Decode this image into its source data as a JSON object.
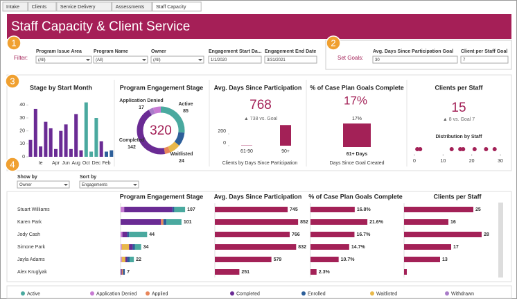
{
  "tabs": [
    "Intake",
    "Clients",
    "Service Delivery",
    "Assessments",
    "Staff Capacity"
  ],
  "header": {
    "title": "Staff Capacity & Client Service"
  },
  "callouts": [
    1,
    2,
    3,
    4
  ],
  "filters": {
    "label": "Filter:",
    "fields": [
      {
        "label": "Program Issue Area",
        "value": "(All)"
      },
      {
        "label": "Program Name",
        "value": "(All)"
      },
      {
        "label": "Owner",
        "value": "(All)"
      },
      {
        "label": "Engagement Start Da...",
        "value": "1/1/2020"
      },
      {
        "label": "Engagement End Date",
        "value": "3/31/2021"
      }
    ]
  },
  "goals": {
    "label": "Set Goals:",
    "fields": [
      {
        "label": "Avg. Days Since Participation Goal",
        "value": "30"
      },
      {
        "label": "Client per Staff Goal",
        "value": "7"
      }
    ]
  },
  "stage_by_month": {
    "title": "Stage by Start Month",
    "categories": [
      null,
      null,
      "Ie",
      null,
      null,
      "Apr",
      null,
      "Jun",
      null,
      "Aug",
      null,
      "Oct",
      null,
      "Dec",
      null,
      "Feb",
      null
    ],
    "values": [
      13,
      37,
      8,
      27,
      22,
      6,
      20,
      25,
      6,
      33,
      5,
      42,
      4,
      30,
      12,
      4,
      5
    ],
    "colors": [
      "#6a2b94",
      "#6a2b94",
      "#6a2b94",
      "#6a2b94",
      "#6a2b94",
      "#6a2b94",
      "#6a2b94",
      "#6a2b94",
      "#6a2b94",
      "#6a2b94",
      "#6a2b94",
      "#4aa99f",
      "#4aa99f",
      "#4aa99f",
      "#6a2b94",
      "#2d5f9a",
      "#2d5f9a"
    ],
    "ylim": [
      0,
      45
    ],
    "yticks": [
      0,
      10,
      20,
      30,
      40
    ]
  },
  "engagement_stage": {
    "title": "Program Engagement Stage",
    "total": 320,
    "segments": [
      {
        "name": "Active",
        "value": 85,
        "color": "#4aa99f"
      },
      {
        "value": 30,
        "color": "#2d5f9a"
      },
      {
        "name": "Waitlisted",
        "value": 24,
        "color": "#e8b84a"
      },
      {
        "value": 12,
        "color": "#e8865a"
      },
      {
        "name": "Completed",
        "value": 142,
        "color": "#6a2b94"
      },
      {
        "value": 10,
        "color": "#a97cc9"
      },
      {
        "name": "Application Denied",
        "value": 17,
        "color": "#c77bd3"
      }
    ]
  },
  "avg_days": {
    "title": "Avg. Days Since Participation",
    "value": 768,
    "delta": "▲ 738 vs. Goal",
    "categories": [
      "61-90",
      "90+"
    ],
    "values": [
      5,
      350
    ],
    "ylim": [
      0,
      400
    ],
    "yticks": [
      0,
      200
    ],
    "caption": "Clients by Days Since Participation"
  },
  "case_plan": {
    "title": "% of Case Plan Goals Complete",
    "value": "17%",
    "categories": [
      "61+ Days"
    ],
    "values": [
      17
    ],
    "value_labels": [
      "17%"
    ],
    "ylim": [
      0,
      20
    ],
    "caption": "Days Since Goal Created"
  },
  "clients_per_staff": {
    "title": "Clients per Staff",
    "value": 15,
    "delta": "▲ 8 vs. Goal 7",
    "subtitle": "Distribution by Staff",
    "values": [
      1,
      2,
      13,
      16,
      17,
      21,
      25,
      28
    ],
    "xlim": [
      0,
      30
    ],
    "xticks": [
      0,
      10,
      20,
      30
    ]
  },
  "controls": [
    {
      "label": "Show by",
      "value": "Owner"
    },
    {
      "label": "Sort by",
      "value": "Engagements"
    }
  ],
  "table": {
    "headers": [
      "Program Engagement Stage",
      "Avg. Days Since Participation",
      "% of Case Plan Goals Complete",
      "Clients per Staff"
    ],
    "rows": [
      {
        "name": "Stuart Williams",
        "stages": [
          18,
          6,
          0,
          80,
          3,
          0,
          0
        ],
        "engagements": 107,
        "days": 745,
        "pct": {
          "value": 16.8,
          "label": "16.8%"
        },
        "clients": 25,
        "clients_label": "25"
      },
      {
        "name": "Karen Park",
        "stages": [
          25,
          0,
          4,
          67,
          5,
          0,
          0
        ],
        "engagements": 101,
        "days": 852,
        "pct": {
          "value": 21.6,
          "label": "21.6%"
        },
        "clients": 16,
        "clients_label": "16"
      },
      {
        "name": "Jody Cash",
        "stages": [
          30,
          3,
          0,
          8,
          3,
          0,
          0
        ],
        "engagements": 44,
        "days": 766,
        "pct": {
          "value": 16.7,
          "label": "16.7%"
        },
        "clients": 28,
        "clients_label": "28"
      },
      {
        "name": "Simone Park",
        "stages": [
          10,
          2,
          0,
          6,
          4,
          12,
          0
        ],
        "engagements": 34,
        "days": 832,
        "pct": {
          "value": 14.7,
          "label": "14.7%"
        },
        "clients": 17,
        "clients_label": "17"
      },
      {
        "name": "Jayla Adams",
        "stages": [
          7,
          2,
          0,
          3,
          4,
          6,
          0
        ],
        "engagements": 22,
        "days": 579,
        "pct": {
          "value": 10.7,
          "label": "10.7%"
        },
        "clients": 13,
        "clients_label": "13"
      },
      {
        "name": "Alex Kruglyak",
        "stages": [
          0,
          0,
          2,
          2,
          3,
          0,
          0
        ],
        "engagements": 7,
        "days": 251,
        "pct": {
          "value": 2.3,
          "label": "2.3%"
        },
        "clients": 1
      }
    ]
  },
  "legend": [
    {
      "name": "Active",
      "color": "#4aa99f"
    },
    {
      "name": "Application Denied",
      "color": "#c77bd3"
    },
    {
      "name": "Applied",
      "color": "#e8865a"
    },
    {
      "name": "Completed",
      "color": "#6a2b94"
    },
    {
      "name": "Enrolled",
      "color": "#2d5f9a"
    },
    {
      "name": "Waitlisted",
      "color": "#e8b84a"
    },
    {
      "name": "Withdrawn",
      "color": "#a97cc9"
    }
  ]
}
